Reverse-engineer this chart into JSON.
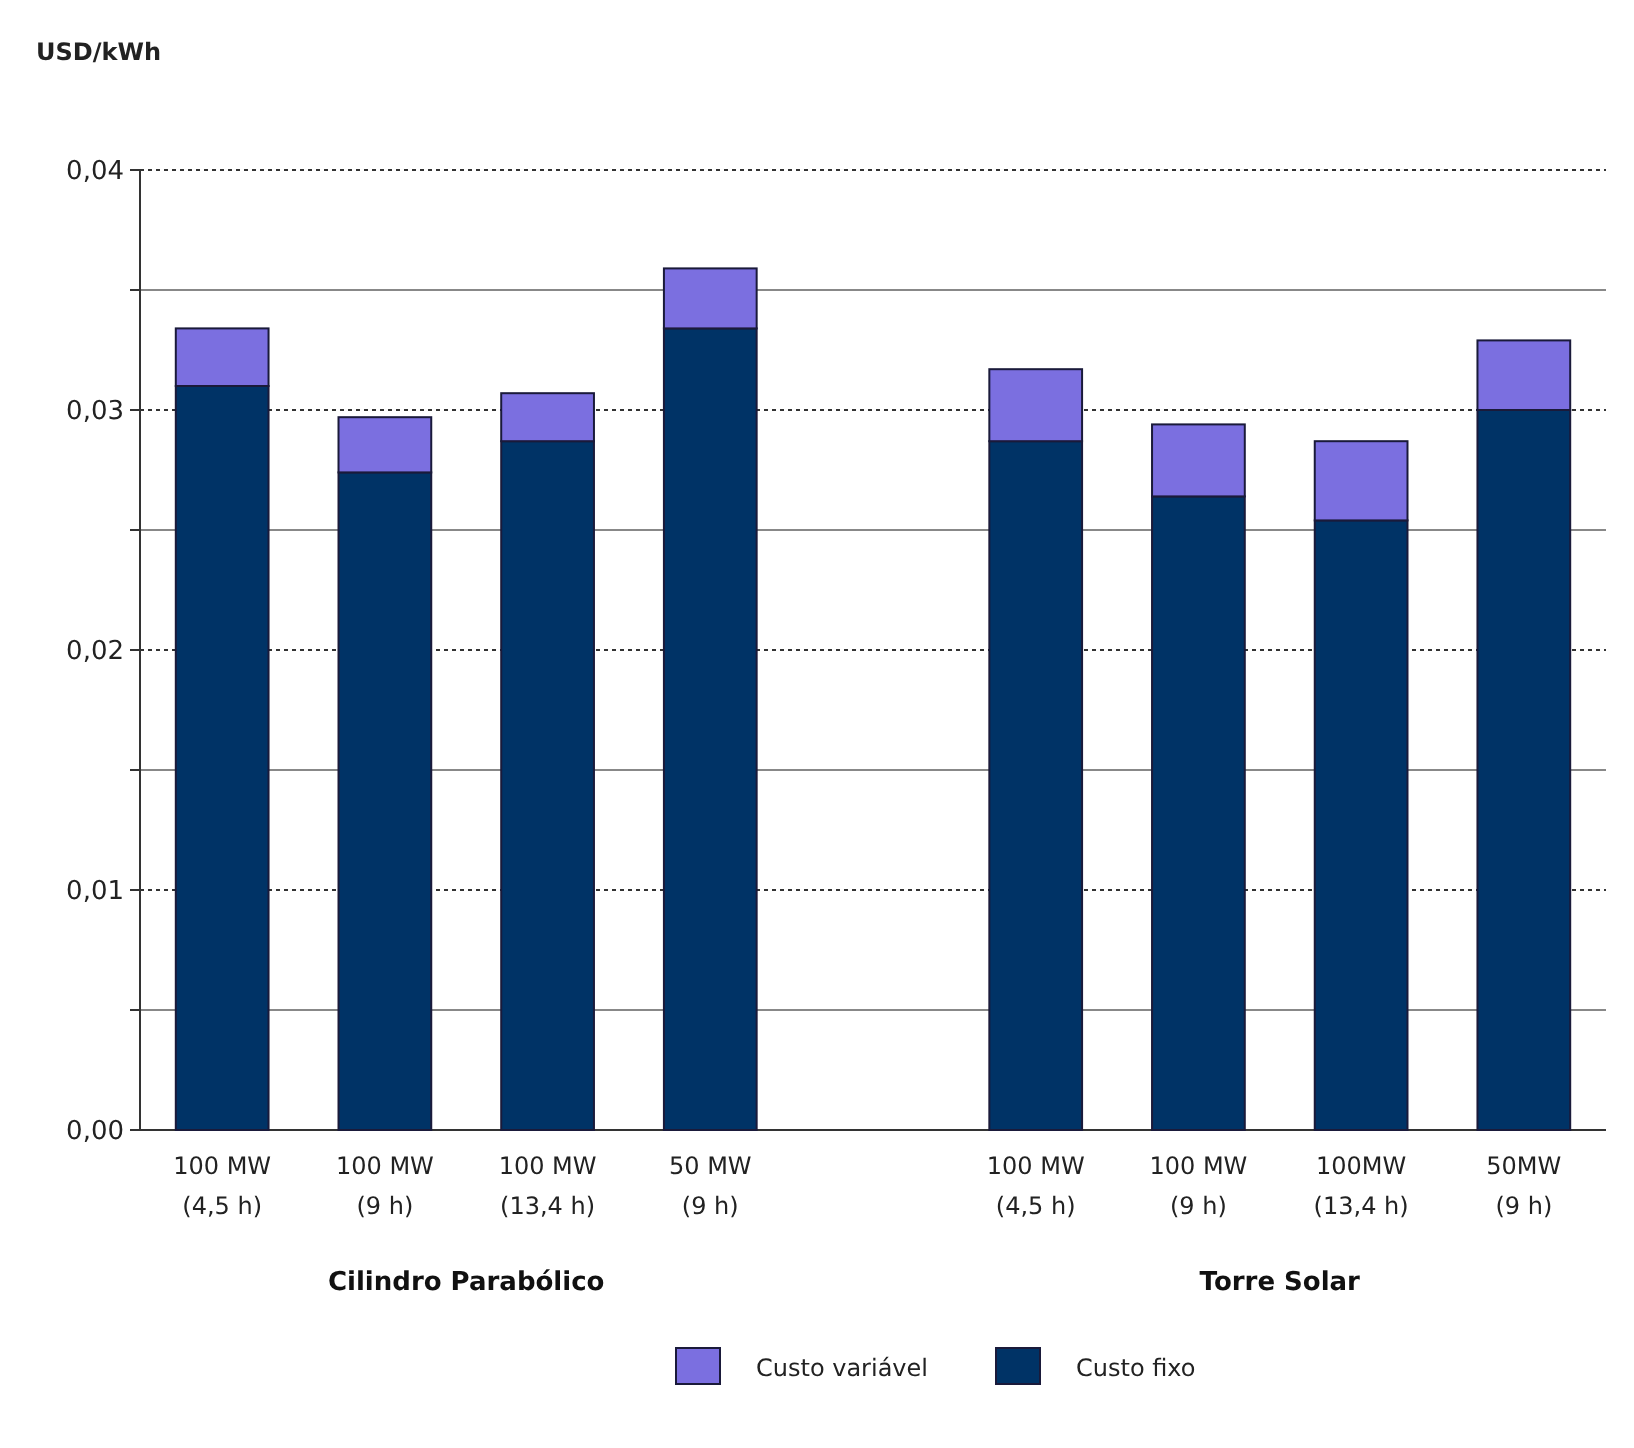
{
  "chart_data": {
    "type": "bar",
    "stacked": true,
    "ylabel": "USD/kWh",
    "categories": [
      "100 MW\n(4,5 h)",
      "100 MW\n(9 h)",
      "100 MW\n(13,4 h)",
      "50 MW\n(9 h)",
      null,
      "100 MW\n(4,5 h)",
      "100 MW\n(9 h)",
      "100MW\n(13,4 h)",
      "50MW\n(9 h)"
    ],
    "series": [
      {
        "name": "Custo fixo",
        "color": "#003366",
        "values": [
          0.031,
          0.0274,
          0.0287,
          0.0334,
          null,
          0.0287,
          0.0264,
          0.0254,
          0.03
        ]
      },
      {
        "name": "Custo variável",
        "color": "#7b6fe0",
        "values": [
          0.0024,
          0.0023,
          0.002,
          0.0025,
          null,
          0.003,
          0.003,
          0.0033,
          0.0029
        ]
      }
    ],
    "ylim": [
      0,
      0.04
    ],
    "yticks": [
      {
        "value": 0,
        "label": "0,00"
      },
      {
        "value": 0.005,
        "label": null
      },
      {
        "value": 0.01,
        "label": "0,01"
      },
      {
        "value": 0.015,
        "label": null
      },
      {
        "value": 0.02,
        "label": "0,02"
      },
      {
        "value": 0.025,
        "label": null
      },
      {
        "value": 0.03,
        "label": "0,03"
      },
      {
        "value": 0.035,
        "label": null
      },
      {
        "value": 0.04,
        "label": "0,04"
      }
    ],
    "grid": "y",
    "legend": "bottom",
    "annotations": [
      "Cilindro Parabólico",
      "Torre Solar"
    ]
  }
}
